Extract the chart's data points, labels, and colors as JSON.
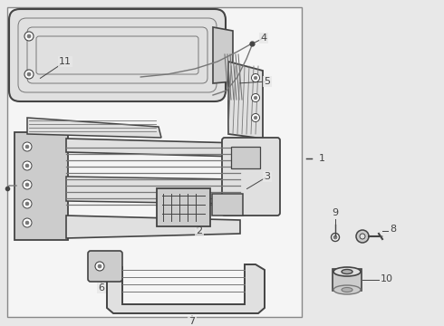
{
  "bg_color": "#e8e8e8",
  "box_bg": "#f0f0f0",
  "line_dark": "#444444",
  "line_med": "#777777",
  "line_light": "#aaaaaa",
  "fill_light": "#e0e0e0",
  "fill_mid": "#cccccc",
  "fill_dark": "#b0b0b0",
  "label_fs": 8,
  "border_color": "#888888",
  "fig_w": 4.9,
  "fig_h": 3.6,
  "dpi": 100
}
